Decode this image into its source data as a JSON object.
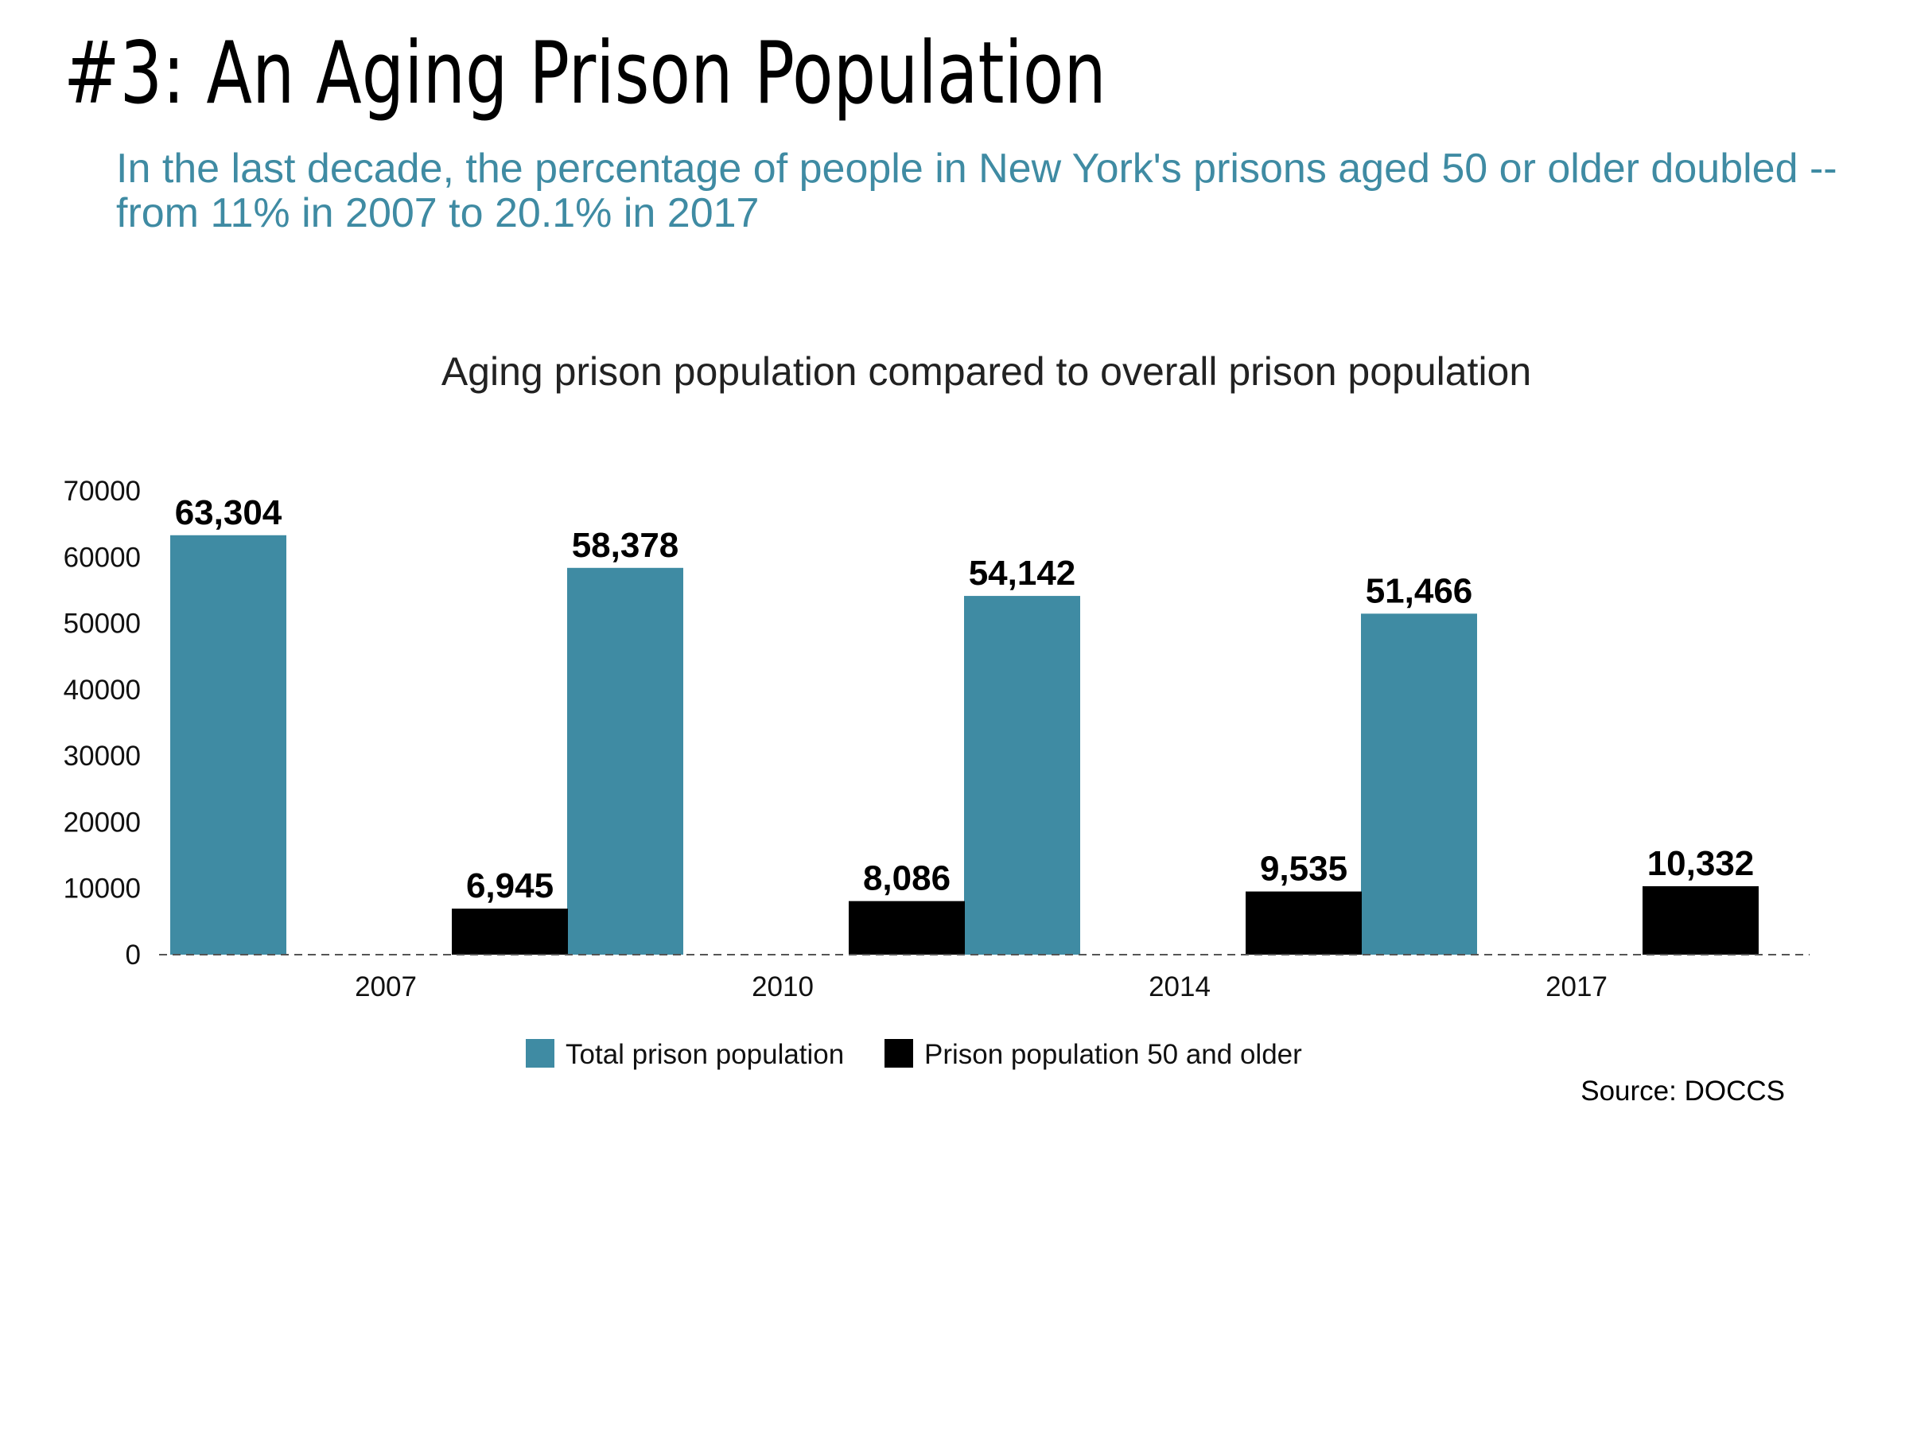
{
  "page": {
    "title": "#3: An Aging Prison Population",
    "subtitle": "In the last decade, the percentage of people in New York's prisons aged 50 or older doubled -- from 11% in 2007 to 20.1% in 2017",
    "source": "Source: DOCCS"
  },
  "colors": {
    "total": "#3f8ba3",
    "older": "#000000",
    "subtitle": "#3f8ba3",
    "baseline": "#555555"
  },
  "chart_data": {
    "type": "bar",
    "title": "Aging prison population compared to overall prison population",
    "categories": [
      "2007",
      "2010",
      "2014",
      "2017"
    ],
    "series": [
      {
        "name": "Total prison population",
        "values": [
          63304,
          58378,
          54142,
          51466
        ],
        "labels": [
          "63,304",
          "58,378",
          "54,142",
          "51,466"
        ],
        "color": "#3f8ba3"
      },
      {
        "name": "Prison population 50 and older",
        "values": [
          6945,
          8086,
          9535,
          10332
        ],
        "labels": [
          "6,945",
          "8,086",
          "9,535",
          "10,332"
        ],
        "color": "#000000"
      }
    ],
    "y_ticks": [
      "0",
      "10000",
      "20000",
      "30000",
      "40000",
      "50000",
      "60000",
      "70000"
    ],
    "ylim": [
      0,
      70000
    ],
    "grid": false,
    "legend_position": "bottom"
  }
}
